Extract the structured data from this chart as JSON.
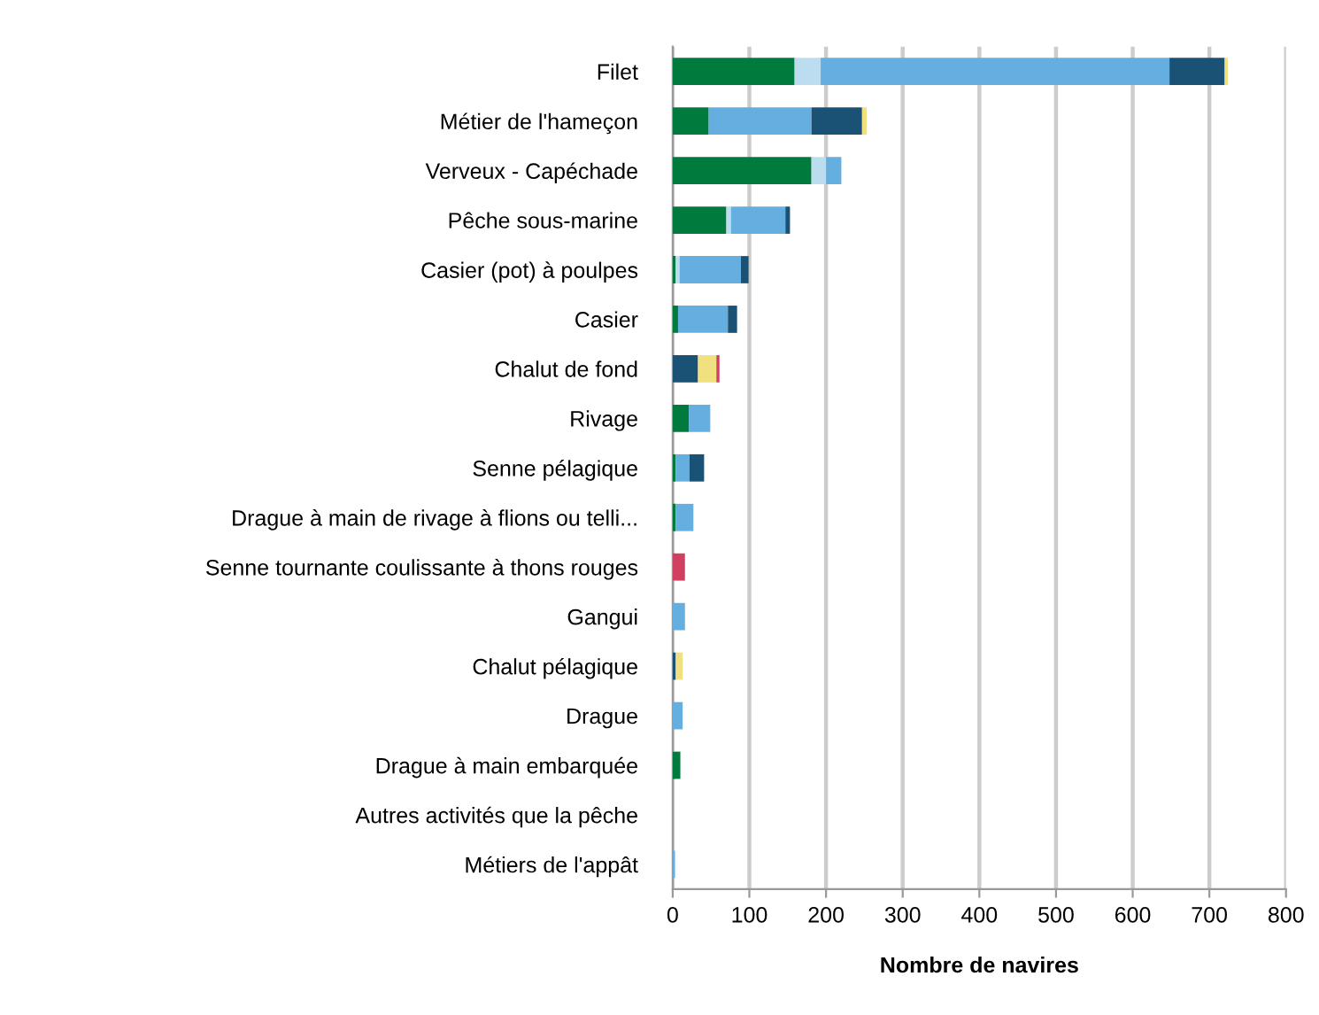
{
  "chart_data": {
    "type": "bar",
    "orientation": "horizontal",
    "stacked": true,
    "xlabel": "Nombre de navires",
    "categories": [
      "Filet",
      "Métier de l'hameçon",
      "Verveux - Capéchade",
      "Pêche sous-marine",
      "Casier (pot) à poulpes",
      "Casier",
      "Chalut de fond",
      "Rivage",
      "Senne pélagique",
      "Drague à main de rivage à flions ou telli...",
      "Senne tournante coulissante à thons rouges",
      "Gangui",
      "Chalut pélagique",
      "Drague",
      "Drague à main embarquée",
      "Autres activités que la pêche",
      "Métiers de l'appât"
    ],
    "series": [
      {
        "color": "#007a3d",
        "values": [
          159,
          47,
          181,
          70,
          4,
          7,
          null,
          21,
          4,
          4,
          null,
          null,
          null,
          null,
          10,
          null,
          null
        ]
      },
      {
        "color": "#bcdcf0",
        "values": [
          34,
          null,
          19,
          6,
          5,
          null,
          null,
          null,
          null,
          null,
          null,
          null,
          null,
          null,
          null,
          null,
          null
        ]
      },
      {
        "color": "#64afe0",
        "values": [
          455,
          134,
          20,
          71,
          80,
          65,
          null,
          28,
          18,
          23,
          null,
          16,
          null,
          13,
          null,
          null,
          3
        ]
      },
      {
        "color": "#1a5276",
        "values": [
          72,
          66,
          null,
          6,
          10,
          12,
          33,
          null,
          19,
          null,
          null,
          null,
          4,
          null,
          null,
          null,
          null
        ]
      },
      {
        "color": "#f0e080",
        "values": [
          4,
          6,
          null,
          null,
          null,
          null,
          24,
          null,
          null,
          null,
          null,
          null,
          9,
          null,
          null,
          null,
          null
        ]
      },
      {
        "color": "#d04060",
        "values": [
          null,
          null,
          null,
          null,
          null,
          null,
          4,
          null,
          null,
          null,
          16,
          null,
          null,
          null,
          null,
          null,
          null
        ]
      }
    ],
    "xlim": [
      0,
      800
    ],
    "xticks": [
      0,
      100,
      200,
      300,
      400,
      500,
      600,
      700,
      800
    ],
    "grid": "x",
    "legend": false
  }
}
